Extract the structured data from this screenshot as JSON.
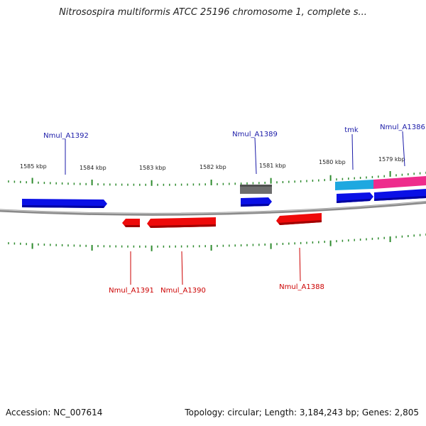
{
  "title": "Nitrosospira multiformis ATCC 25196 chromosome 1, complete s...",
  "footer": {
    "accession": "Accession: NC_007614",
    "summary": "Topology: circular; Length: 3,184,243 bp; Genes: 2,805"
  },
  "colors": {
    "backbone": "#8a8a8a",
    "tick": "#2e8b2e",
    "forward_gene": "#0a10e6",
    "reverse_gene": "#ee0a0a",
    "gray_feature": "#6e6e6e",
    "cyan_feature": "#1ea8e0",
    "pink_feature": "#ee2c8c",
    "label_forward": "#1a1aa8",
    "label_reverse": "#cc0000"
  },
  "scale": {
    "labels": [
      "1585 kbp",
      "1584 kbp",
      "1583 kbp",
      "1582 kbp",
      "1581 kbp",
      "1580 kbp",
      "1579 kbp"
    ]
  },
  "genes": {
    "forward": [
      "Nmul_A1392",
      "Nmul_A1389",
      "tmk",
      "Nmul_A1386"
    ],
    "reverse": [
      "Nmul_A1391",
      "Nmul_A1390",
      "Nmul_A1388"
    ]
  }
}
